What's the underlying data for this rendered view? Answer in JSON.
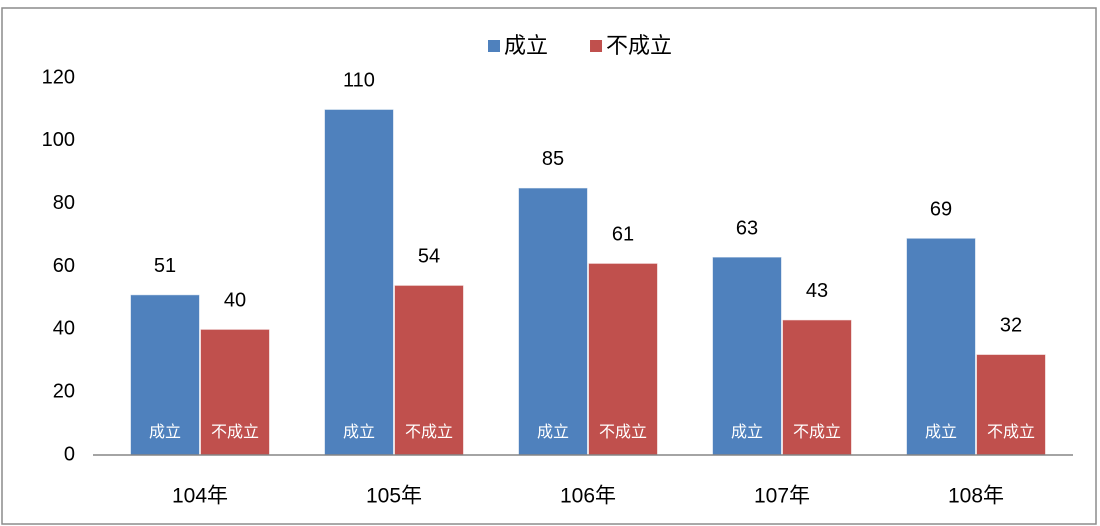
{
  "chart_data": {
    "type": "bar",
    "categories": [
      "104年",
      "105年",
      "106年",
      "107年",
      "108年"
    ],
    "series": [
      {
        "name": "成立",
        "color": "#4f81bd",
        "values": [
          51,
          110,
          85,
          63,
          69
        ]
      },
      {
        "name": "不成立",
        "color": "#c0504d",
        "values": [
          40,
          54,
          61,
          43,
          32
        ]
      }
    ],
    "ylim": [
      0,
      120
    ],
    "yticks": [
      0,
      20,
      40,
      60,
      80,
      100,
      120
    ],
    "grid": false,
    "legend": "top"
  }
}
